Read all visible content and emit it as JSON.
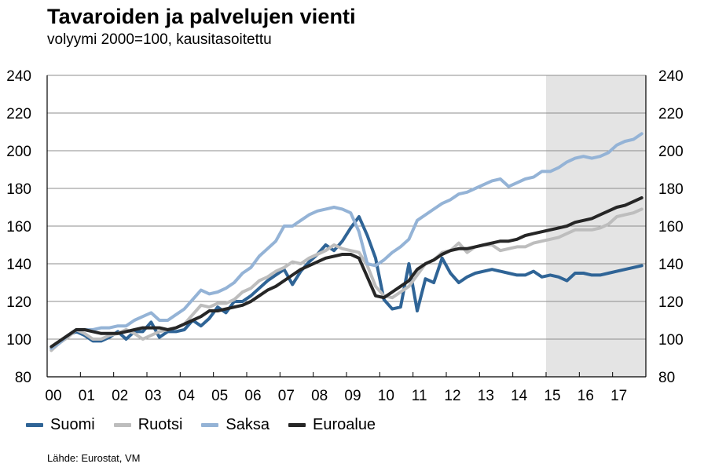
{
  "chart_data": {
    "type": "line",
    "title": "Tavaroiden ja palvelujen vienti",
    "subtitle": "volyymi 2000=100, kausitasoitettu",
    "xlabel": "",
    "ylabel": "",
    "ylim": [
      80,
      240
    ],
    "yticks": [
      80,
      100,
      120,
      140,
      160,
      180,
      200,
      220,
      240
    ],
    "ytick_labels": [
      "80",
      "100",
      "120",
      "140",
      "160",
      "180",
      "200",
      "220",
      "240"
    ],
    "xtick_labels": [
      "00",
      "01",
      "02",
      "03",
      "04",
      "05",
      "06",
      "07",
      "08",
      "09",
      "10",
      "11",
      "12",
      "13",
      "14",
      "15",
      "16",
      "17"
    ],
    "x_period": "quarterly 2000Q1–2017Q4",
    "forecast_shading_start": "2015Q1",
    "grid": true,
    "legend_position": "bottom-left",
    "series": [
      {
        "name": "Suomi",
        "color": "#2f6496",
        "values": [
          95,
          98,
          102,
          104,
          102,
          99,
          99,
          101,
          104,
          100,
          104,
          104,
          109,
          101,
          104,
          104,
          105,
          110,
          107,
          111,
          117,
          114,
          120,
          120,
          123,
          127,
          131,
          134,
          137,
          129,
          136,
          141,
          145,
          150,
          147,
          152,
          159,
          165,
          155,
          143,
          121,
          116,
          117,
          140,
          115,
          132,
          130,
          143,
          135,
          130,
          133,
          135,
          136,
          137,
          136,
          135,
          134,
          134,
          136,
          133,
          134,
          133,
          131,
          135,
          135,
          134,
          134,
          135,
          136,
          137,
          138,
          139
        ]
      },
      {
        "name": "Ruotsi",
        "color": "#bdbdbd",
        "values": [
          94,
          98,
          101,
          105,
          103,
          100,
          100,
          102,
          103,
          105,
          103,
          100,
          102,
          104,
          105,
          106,
          108,
          113,
          118,
          117,
          119,
          119,
          121,
          125,
          127,
          131,
          133,
          136,
          138,
          141,
          140,
          143,
          145,
          147,
          150,
          148,
          147,
          146,
          139,
          128,
          123,
          122,
          125,
          128,
          134,
          140,
          142,
          146,
          147,
          151,
          146,
          149,
          150,
          150,
          147,
          148,
          149,
          149,
          151,
          152,
          153,
          154,
          156,
          158,
          158,
          158,
          159,
          161,
          165,
          166,
          167,
          169
        ]
      },
      {
        "name": "Saksa",
        "color": "#94b3d6",
        "values": [
          95,
          98,
          102,
          105,
          105,
          105,
          106,
          106,
          107,
          107,
          110,
          112,
          114,
          110,
          110,
          113,
          116,
          121,
          126,
          124,
          125,
          127,
          130,
          135,
          138,
          144,
          148,
          152,
          160,
          160,
          163,
          166,
          168,
          169,
          170,
          169,
          167,
          157,
          140,
          139,
          142,
          146,
          149,
          153,
          163,
          166,
          169,
          172,
          174,
          177,
          178,
          180,
          182,
          184,
          185,
          181,
          183,
          185,
          186,
          189,
          189,
          191,
          194,
          196,
          197,
          196,
          197,
          199,
          203,
          205,
          206,
          209
        ]
      },
      {
        "name": "Euroalue",
        "color": "#262626",
        "values": [
          96,
          99,
          102,
          105,
          105,
          104,
          103,
          103,
          103,
          104,
          105,
          106,
          106,
          106,
          105,
          106,
          108,
          110,
          112,
          115,
          115,
          116,
          117,
          118,
          120,
          123,
          126,
          128,
          131,
          134,
          137,
          139,
          141,
          143,
          144,
          145,
          145,
          143,
          133,
          123,
          122,
          125,
          128,
          131,
          137,
          140,
          142,
          145,
          147,
          148,
          148,
          149,
          150,
          151,
          152,
          152,
          153,
          155,
          156,
          157,
          158,
          159,
          160,
          162,
          163,
          164,
          166,
          168,
          170,
          171,
          173,
          175
        ]
      }
    ]
  },
  "footer": {
    "source": "Lähde: Eurostat, VM"
  }
}
